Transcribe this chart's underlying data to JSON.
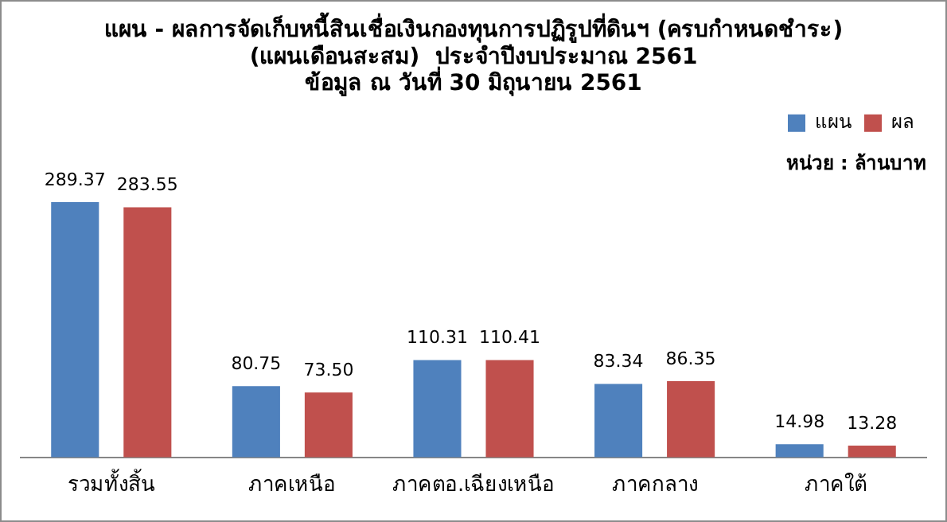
{
  "chart_data": {
    "type": "bar",
    "title": "แผน - ผลการจัดเก็บหนี้สินเชื่อเงินกองทุนการปฏิรูปที่ดินฯ (ครบกำหนดชำระ)\n(แผนเดือนสะสม)  ประจำปีงบประมาณ 2561\nข้อมูล ณ วันที่ 30 มิถุนายน 2561",
    "categories": [
      "รวมทั้งสิ้น",
      "ภาคเหนือ",
      "ภาคตอ.เฉียงเหนือ",
      "ภาคกลาง",
      "ภาคใต้"
    ],
    "series": [
      {
        "name": "แผน",
        "color": "#4f81bd",
        "values": [
          289.37,
          80.75,
          110.31,
          83.34,
          14.98
        ],
        "value_labels": [
          "289.37",
          "80.75",
          "110.31",
          "83.34",
          "14.98"
        ]
      },
      {
        "name": "ผล",
        "color": "#c0504d",
        "values": [
          283.55,
          73.5,
          110.41,
          86.35,
          13.28
        ],
        "value_labels": [
          "283.55",
          "73.50",
          "110.41",
          "86.35",
          "13.28"
        ]
      }
    ],
    "annotations": [
      "หน่วย : ล้านบาท"
    ],
    "legend": "top right",
    "grid": false
  }
}
